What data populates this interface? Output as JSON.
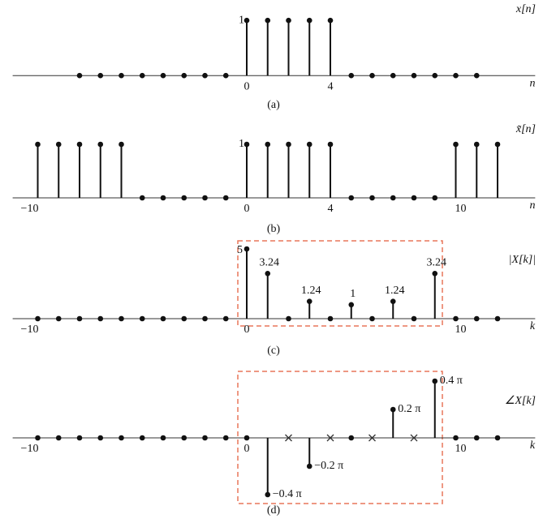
{
  "chart_data": [
    {
      "type": "stem",
      "title": "x[n]",
      "xlabel": "n",
      "caption": "(a)",
      "x": [
        -8,
        -7,
        -6,
        -5,
        -4,
        -3,
        -2,
        -1,
        0,
        1,
        2,
        3,
        4,
        5,
        6,
        7,
        8,
        9,
        10,
        11
      ],
      "values": [
        0,
        0,
        0,
        0,
        0,
        0,
        0,
        0,
        1,
        1,
        1,
        1,
        1,
        0,
        0,
        0,
        0,
        0,
        0,
        0
      ],
      "xlim": [
        -11.2,
        13.8
      ],
      "ylim": [
        -0.1,
        1.2
      ],
      "xticks": [
        0,
        4
      ],
      "yticks": [
        1
      ],
      "color": "#111111"
    },
    {
      "type": "stem",
      "title": "x̃[n]",
      "xlabel": "n",
      "caption": "(b)",
      "x": [
        -10,
        -9,
        -8,
        -7,
        -6,
        -5,
        -4,
        -3,
        -2,
        -1,
        0,
        1,
        2,
        3,
        4,
        5,
        6,
        7,
        8,
        9,
        10,
        11,
        12
      ],
      "values": [
        1,
        1,
        1,
        1,
        1,
        0,
        0,
        0,
        0,
        0,
        1,
        1,
        1,
        1,
        1,
        0,
        0,
        0,
        0,
        0,
        1,
        1,
        1
      ],
      "xlim": [
        -11.2,
        13.8
      ],
      "ylim": [
        -0.1,
        1.2
      ],
      "xticks": [
        {
          "value": -10,
          "label": "−10"
        },
        0,
        4,
        10
      ],
      "yticks": [
        1
      ],
      "color": "#111111"
    },
    {
      "type": "stem",
      "title": "|X[k]|",
      "xlabel": "k",
      "caption": "(c)",
      "x": [
        -10,
        -9,
        -8,
        -7,
        -6,
        -5,
        -4,
        -3,
        -2,
        -1,
        0,
        1,
        2,
        3,
        4,
        5,
        6,
        7,
        8,
        9,
        10,
        11,
        12
      ],
      "values": [
        0,
        0,
        0,
        0,
        0,
        0,
        0,
        0,
        0,
        0,
        5,
        3.24,
        0,
        1.24,
        0,
        1,
        0,
        1.24,
        0,
        3.24,
        0,
        0,
        0
      ],
      "xlim": [
        -11.2,
        13.8
      ],
      "ylim": [
        -0.5,
        5.5
      ],
      "xticks": [
        {
          "value": -10,
          "label": "−10"
        },
        0,
        10
      ],
      "color": "#111111"
    },
    {
      "type": "stem",
      "title": "∠X[k]",
      "xlabel": "k",
      "caption": "(d)",
      "x": [
        -10,
        -9,
        -8,
        -7,
        -6,
        -5,
        -4,
        -3,
        -2,
        -1,
        0,
        1,
        2,
        3,
        4,
        5,
        6,
        7,
        8,
        9,
        10,
        11,
        12
      ],
      "values": [
        0,
        0,
        0,
        0,
        0,
        0,
        0,
        0,
        0,
        0,
        0,
        -0.4,
        null,
        -0.2,
        null,
        0,
        null,
        0.2,
        null,
        0.4,
        0,
        0,
        0
      ],
      "value_labels": [
        null,
        null,
        null,
        null,
        null,
        null,
        null,
        null,
        null,
        null,
        null,
        "−0.4 π",
        null,
        "−0.2 π",
        null,
        null,
        null,
        "0.2 π",
        null,
        "0.4 π",
        null,
        null,
        null
      ],
      "xlim": [
        -11.2,
        13.8
      ],
      "ylim": [
        -0.45,
        0.45
      ],
      "xticks": [
        {
          "value": -10,
          "label": "−10"
        },
        0,
        10
      ],
      "color": "#111111"
    }
  ]
}
